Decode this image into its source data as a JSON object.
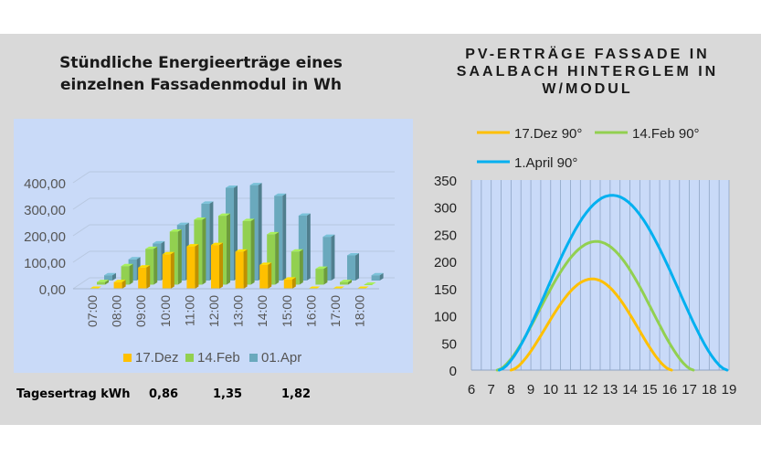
{
  "left_title": "Stündliche Energieerträge eines einzelnen Fassadenmodul in Wh",
  "right_title": "PV-ERTRÄGE  FASSADE IN SAALBACH HINTERGLEM IN W/MODUL",
  "summary": {
    "label": "Tagesertrag kWh",
    "values": [
      "0,86",
      "1,35",
      "1,82"
    ]
  },
  "colors": {
    "panel": "#d9d9d9",
    "plot_left": "#c9daf8",
    "plot_right": "#c9daf8",
    "dez": "#ffc000",
    "feb": "#92d050",
    "apr": "#6aa9bd",
    "apr_line": "#00b0f0"
  },
  "chart_data": [
    {
      "type": "bar",
      "title": "Stündliche Energieerträge eines einzelnen Fassadenmodul in Wh",
      "categories": [
        "07:00",
        "08:00",
        "09:00",
        "10:00",
        "11:00",
        "12:00",
        "13:00",
        "14:00",
        "15:00",
        "16:00",
        "17:00",
        "18:00"
      ],
      "y_tick_labels": [
        "0,00",
        "100,00",
        "200,00",
        "300,00",
        "400,00"
      ],
      "ylim": [
        0,
        400
      ],
      "legend_position": "bottom",
      "series": [
        {
          "name": "17.Dez",
          "values": [
            0,
            25,
            80,
            130,
            160,
            165,
            140,
            90,
            35,
            0,
            0,
            0
          ]
        },
        {
          "name": "14.Feb",
          "values": [
            10,
            70,
            135,
            200,
            245,
            260,
            240,
            190,
            125,
            60,
            10,
            0
          ]
        },
        {
          "name": "01.Apr",
          "values": [
            20,
            80,
            140,
            210,
            290,
            350,
            360,
            320,
            245,
            165,
            95,
            20
          ]
        }
      ]
    },
    {
      "type": "line",
      "title": "PV-ERTRÄGE  FASSADE IN SAALBACH HINTERGLEM IN W/MODUL",
      "x_ticks": [
        6,
        7,
        8,
        9,
        10,
        11,
        12,
        13,
        14,
        15,
        16,
        17,
        18,
        19
      ],
      "y_ticks": [
        0,
        50,
        100,
        150,
        200,
        250,
        300,
        350
      ],
      "xlim": [
        6,
        19
      ],
      "ylim": [
        0,
        350
      ],
      "legend_position": "top",
      "series": [
        {
          "name": "17.Dez 90°",
          "start": 8.0,
          "peak_x": 12.1,
          "peak_y": 168,
          "end": 16.1
        },
        {
          "name": "14.Feb 90°",
          "start": 7.3,
          "peak_x": 12.3,
          "peak_y": 237,
          "end": 17.2
        },
        {
          "name": "1.April 90°",
          "start": 7.4,
          "peak_x": 13.1,
          "peak_y": 322,
          "end": 18.9
        }
      ]
    }
  ]
}
